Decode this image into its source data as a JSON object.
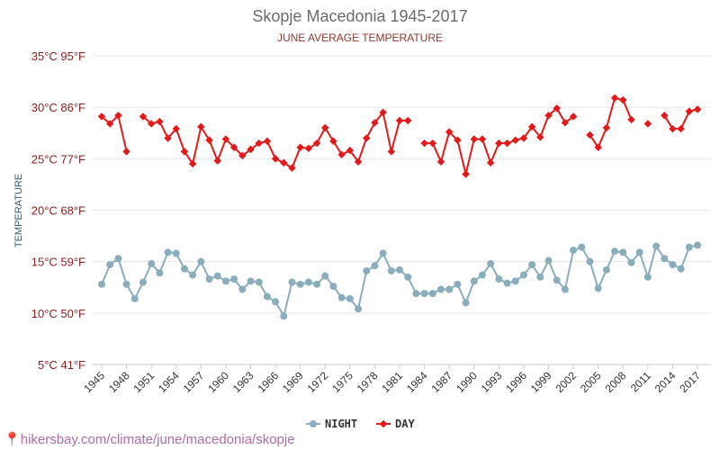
{
  "chart_data": {
    "type": "line",
    "title": "Skopje Macedonia 1945-2017",
    "subtitle": "JUNE AVERAGE TEMPERATURE",
    "ylabel": "TEMPERATURE",
    "xlabel": "",
    "ylim": [
      5,
      35
    ],
    "y_ticks": [
      "5°C 41°F",
      "10°C 50°F",
      "15°C 59°F",
      "20°C 68°F",
      "25°C 77°F",
      "30°C 86°F",
      "35°C 95°F"
    ],
    "x_ticks": [
      "1945",
      "1948",
      "1951",
      "1954",
      "1957",
      "1960",
      "1963",
      "1966",
      "1969",
      "1972",
      "1975",
      "1978",
      "1981",
      "1984",
      "1987",
      "1990",
      "1993",
      "1996",
      "1999",
      "2002",
      "2005",
      "2008",
      "2011",
      "2014",
      "2017"
    ],
    "grid": true,
    "legend_position": "bottom-center",
    "x": [
      1945,
      1946,
      1947,
      1948,
      1949,
      1950,
      1951,
      1952,
      1953,
      1954,
      1955,
      1956,
      1957,
      1958,
      1959,
      1960,
      1961,
      1962,
      1963,
      1964,
      1965,
      1966,
      1967,
      1968,
      1969,
      1970,
      1971,
      1972,
      1973,
      1974,
      1975,
      1976,
      1977,
      1978,
      1979,
      1980,
      1981,
      1982,
      1983,
      1984,
      1985,
      1986,
      1987,
      1988,
      1989,
      1990,
      1991,
      1992,
      1993,
      1994,
      1995,
      1996,
      1997,
      1998,
      1999,
      2000,
      2001,
      2002,
      2003,
      2004,
      2005,
      2006,
      2007,
      2008,
      2009,
      2010,
      2011,
      2012,
      2013,
      2014,
      2015,
      2016,
      2017
    ],
    "series": [
      {
        "name": "NIGHT",
        "color": "#8aadbb",
        "values": [
          12.8,
          14.7,
          15.3,
          12.8,
          11.4,
          13.0,
          14.8,
          13.9,
          15.9,
          15.8,
          14.3,
          13.7,
          15.0,
          13.3,
          13.6,
          13.1,
          13.3,
          12.3,
          13.1,
          13.0,
          11.6,
          11.1,
          9.7,
          13.0,
          12.8,
          13.0,
          12.8,
          13.6,
          12.6,
          11.5,
          11.4,
          10.4,
          14.1,
          14.6,
          15.8,
          14.1,
          14.2,
          13.5,
          11.9,
          11.9,
          11.9,
          12.3,
          12.3,
          12.8,
          11.0,
          13.1,
          13.7,
          14.8,
          13.3,
          12.9,
          13.1,
          13.7,
          14.7,
          13.5,
          15.1,
          13.2,
          12.3,
          16.1,
          16.4,
          15.0,
          12.4,
          14.2,
          16.0,
          15.9,
          14.9,
          15.9,
          13.5,
          16.5,
          15.3,
          14.7,
          14.3,
          16.4,
          16.6
        ]
      },
      {
        "name": "DAY",
        "color": "#e41a1a",
        "values": [
          29.1,
          28.4,
          29.2,
          25.7,
          null,
          29.1,
          28.4,
          28.6,
          27.0,
          27.9,
          25.7,
          24.5,
          28.1,
          26.8,
          24.8,
          26.9,
          26.1,
          25.3,
          25.9,
          26.5,
          26.7,
          25.0,
          24.6,
          24.1,
          26.1,
          26.0,
          26.5,
          28.0,
          26.7,
          25.4,
          25.8,
          24.7,
          27.0,
          28.5,
          29.5,
          25.7,
          28.7,
          28.7,
          null,
          26.5,
          26.5,
          24.7,
          27.6,
          26.8,
          23.5,
          26.9,
          26.9,
          24.6,
          26.5,
          26.5,
          26.8,
          27.0,
          28.1,
          27.1,
          29.2,
          29.9,
          28.5,
          29.1,
          null,
          27.3,
          26.1,
          28.0,
          30.9,
          30.7,
          28.8,
          null,
          28.4,
          null,
          29.2,
          27.9,
          27.9,
          29.6,
          29.8
        ]
      }
    ]
  },
  "footer": {
    "source_text": "hikersbay.com/climate/june/macedonia/skopje"
  }
}
